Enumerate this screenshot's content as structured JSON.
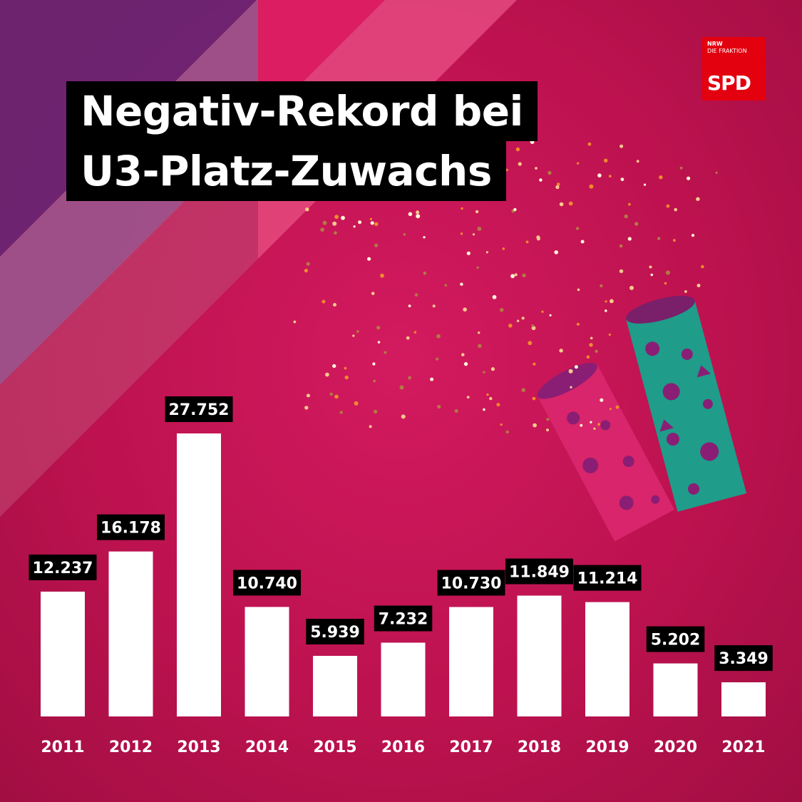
{
  "header": {
    "title_line_1": "Negativ-Rekord bei",
    "title_line_2": "U3-Platz-Zuwachs"
  },
  "logo": {
    "line_1": "NRW",
    "line_2": "DIE FRAKTION",
    "line_3": "SPD"
  },
  "colors": {
    "background": "#c2134f",
    "bars": "#ffffff",
    "label_box": "#000000",
    "logo": "#e3000f"
  },
  "chart_data": {
    "type": "bar",
    "categories": [
      "2011",
      "2012",
      "2013",
      "2014",
      "2015",
      "2016",
      "2017",
      "2018",
      "2019",
      "2020",
      "2021"
    ],
    "values": [
      12237,
      16178,
      27752,
      10740,
      5939,
      7232,
      10730,
      11849,
      11214,
      5202,
      3349
    ],
    "value_labels": [
      "12.237",
      "16.178",
      "27.752",
      "10.740",
      "5.939",
      "7.232",
      "10.730",
      "11.849",
      "11.214",
      "5.202",
      "3.349"
    ],
    "ylim": [
      0,
      30000
    ],
    "grid": false,
    "legend": "none"
  }
}
